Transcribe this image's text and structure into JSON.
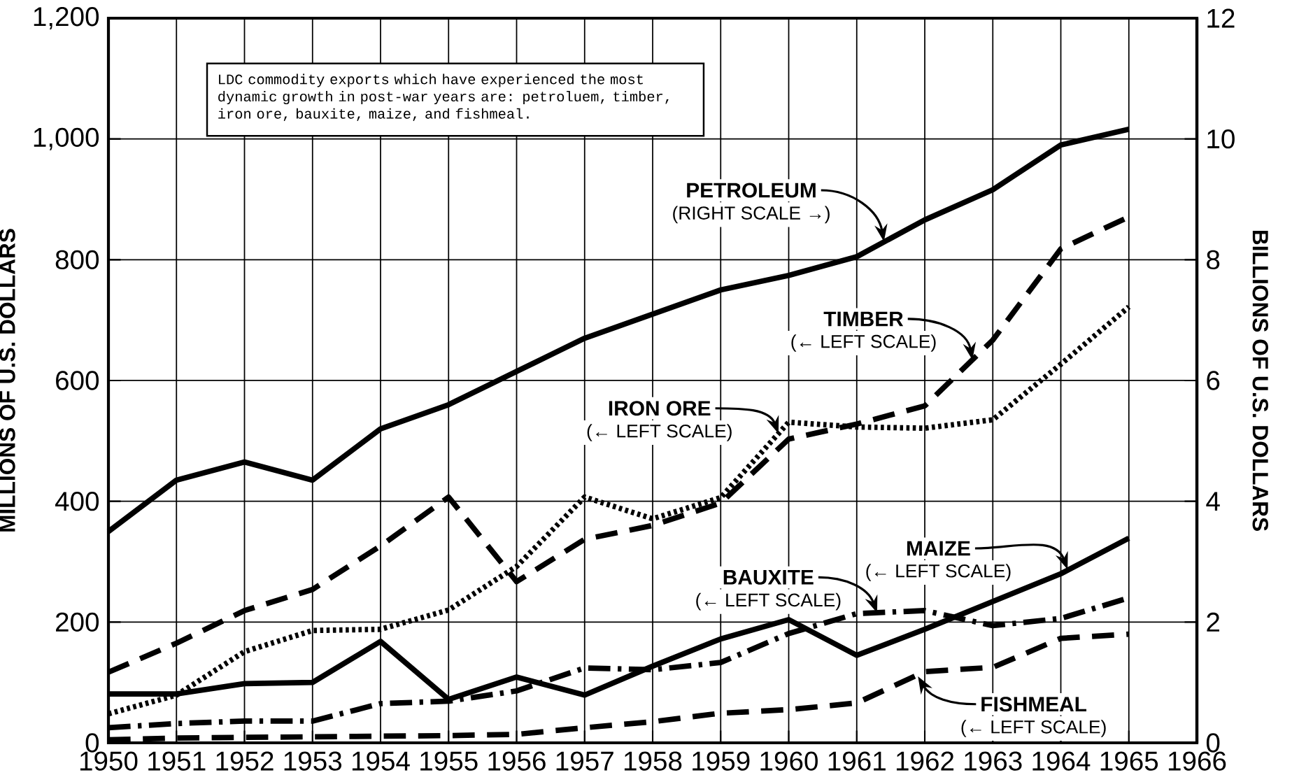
{
  "chart_data": {
    "type": "line",
    "ylabel": "MILLIONS OF U.S. DOLLARS",
    "y2label": "BILLIONS OF U.S. DOLLARS",
    "annotations": [
      "LDC commodity exports which have experienced the most dynamic growth in post-war years are:  petroluem, timber, iron ore, bauxite, maize, and fishmeal.",
      "PETROLEUM",
      "(RIGHT SCALE →)",
      "TIMBER",
      "(← LEFT SCALE)",
      "IRON ORE",
      "(← LEFT SCALE)",
      "MAIZE",
      "(← LEFT SCALE)",
      "BAUXITE",
      "(← LEFT SCALE)",
      "FISHMEAL",
      "(← LEFT SCALE)"
    ],
    "x": [
      1950,
      1951,
      1952,
      1953,
      1954,
      1955,
      1956,
      1957,
      1958,
      1959,
      1960,
      1961,
      1962,
      1963,
      1964,
      1965
    ],
    "xlim": [
      1950,
      1966
    ],
    "xticks": [
      1950,
      1951,
      1952,
      1953,
      1954,
      1955,
      1956,
      1957,
      1958,
      1959,
      1960,
      1961,
      1962,
      1963,
      1964,
      1965,
      1966
    ],
    "ylim": [
      0,
      1200
    ],
    "yticks": [
      0,
      200,
      400,
      600,
      800,
      {
        "value": 1000,
        "label": "1,000"
      },
      {
        "value": 1200,
        "label": "1,200"
      }
    ],
    "y2lim": [
      0,
      12
    ],
    "y2ticks": [
      0,
      2,
      4,
      6,
      8,
      10,
      12
    ],
    "grid": true,
    "marker": "none",
    "series": [
      {
        "color": "#000000",
        "axis": "y2",
        "line_style": "solid",
        "values": [
          3.5,
          4.35,
          4.65,
          4.35,
          5.2,
          5.6,
          6.15,
          6.7,
          7.1,
          7.5,
          7.74,
          8.05,
          8.66,
          9.16,
          9.9,
          10.16
        ]
      },
      {
        "color": "#000000",
        "line_style": "dashed",
        "values": [
          117,
          165,
          219,
          254,
          326,
          407,
          267,
          337,
          360,
          397,
          503,
          528,
          558,
          667,
          818,
          871
        ]
      },
      {
        "color": "#000000",
        "line_style": "dotted",
        "values": [
          48,
          79,
          151,
          186,
          188,
          220,
          292,
          407,
          371,
          406,
          531,
          523,
          521,
          535,
          627,
          722
        ]
      },
      {
        "color": "#000000",
        "line_style": "solid",
        "values": [
          81,
          81,
          98,
          100,
          168,
          72,
          109,
          79,
          127,
          172,
          204,
          145,
          188,
          234,
          280,
          339
        ]
      },
      {
        "color": "#000000",
        "line_style": "dashdot",
        "values": [
          25,
          32,
          36,
          36,
          65,
          69,
          86,
          124,
          121,
          133,
          181,
          214,
          219,
          194,
          206,
          240
        ]
      },
      {
        "color": "#000000",
        "line_style": "dashed",
        "values": [
          5,
          8,
          9,
          10,
          11,
          12,
          14,
          25,
          35,
          49,
          55,
          66,
          118,
          125,
          173,
          180
        ]
      }
    ]
  }
}
